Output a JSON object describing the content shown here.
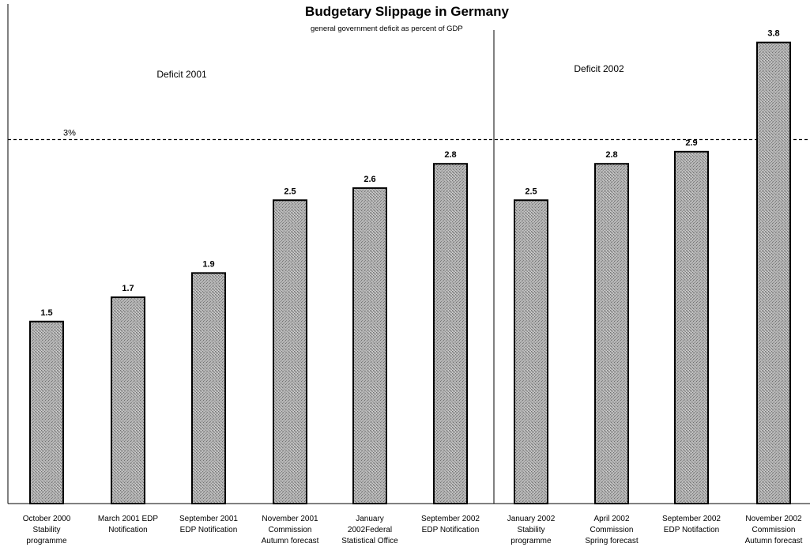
{
  "chart_data": {
    "type": "bar",
    "title": "Budgetary Slippage in Germany",
    "subtitle": "general government deficit as percent of GDP",
    "categories": [
      "October 2000 Stability programme",
      "March 2001 EDP Notification",
      "September 2001 EDP Notification",
      "November 2001 Commission Autumn forecast",
      "January 2002Federal Statistical Office",
      "September 2002 EDP Notification",
      "January 2002 Stability programme",
      "April 2002 Commission Spring forecast",
      "September 2002 EDP Notifaction",
      "November 2002 Commission Autumn forecast"
    ],
    "category_lines": [
      [
        "October 2000",
        "Stability",
        "programme"
      ],
      [
        "March 2001 EDP",
        "Notification"
      ],
      [
        "September 2001",
        "EDP Notification"
      ],
      [
        "November 2001",
        "Commission",
        "Autumn forecast"
      ],
      [
        "January",
        "2002Federal",
        "Statistical Office"
      ],
      [
        "September 2002",
        "EDP Notification"
      ],
      [
        "January 2002",
        "Stability",
        "programme"
      ],
      [
        "April 2002",
        "Commission",
        "Spring forecast"
      ],
      [
        "September 2002",
        "EDP Notifaction"
      ],
      [
        "November 2002",
        "Commission",
        "Autumn forecast"
      ]
    ],
    "values": [
      1.5,
      1.7,
      1.9,
      2.5,
      2.6,
      2.8,
      2.5,
      2.8,
      2.9,
      3.8
    ],
    "value_labels": [
      "1.5",
      "1.7",
      "1.9",
      "2.5",
      "2.6",
      "2.8",
      "2.5",
      "2.8",
      "2.9",
      "3.8"
    ],
    "groups": [
      {
        "label": "Deficit 2001",
        "start_index": 0,
        "end_index": 5
      },
      {
        "label": "Deficit 2002",
        "start_index": 6,
        "end_index": 9
      }
    ],
    "reference_line": {
      "value": 3.0,
      "label": "3%",
      "style": "dashed"
    },
    "ylim": [
      0,
      4.1
    ],
    "xlabel": "",
    "ylabel": "",
    "grid": false,
    "legend": "none",
    "bar_color": "#a9a9a9"
  }
}
